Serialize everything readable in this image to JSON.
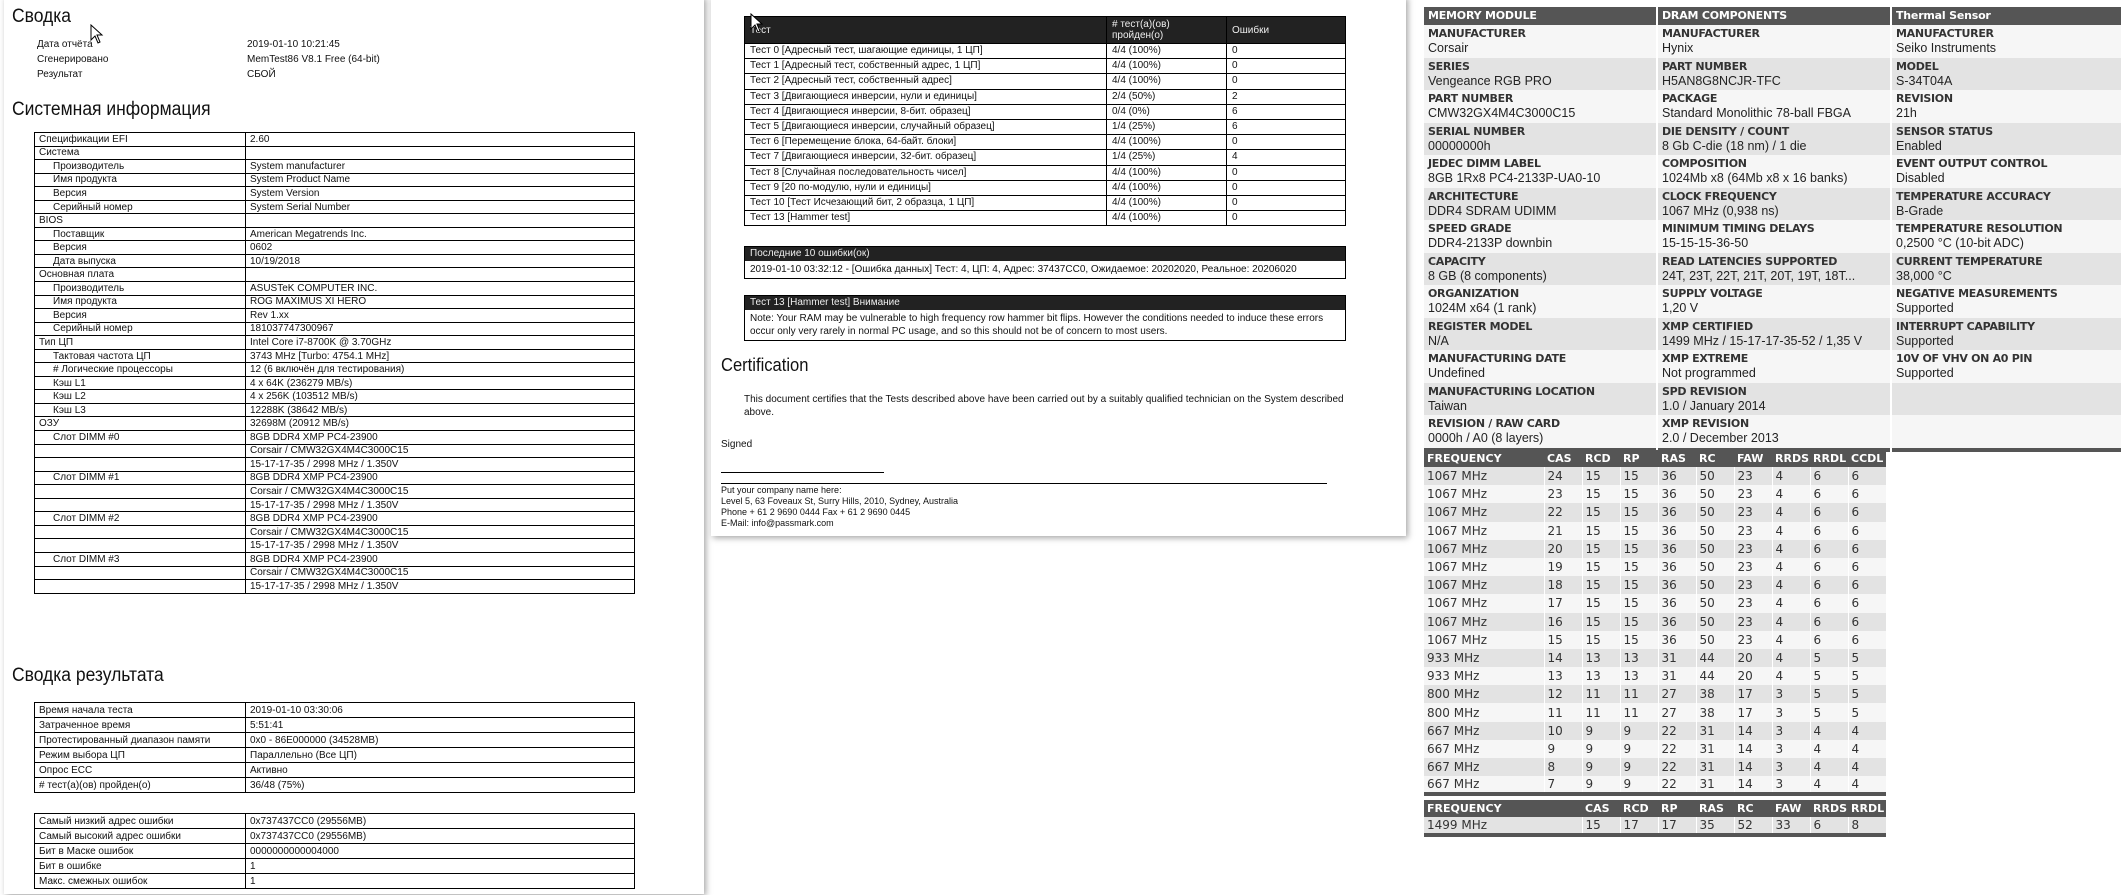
{
  "summary": {
    "title": "Сводка",
    "rows": [
      {
        "label": "Дата отчёта",
        "value": "2019-01-10 10:21:45"
      },
      {
        "label": "Сгенерировано",
        "value": "MemTest86 V8.1 Free (64-bit)"
      },
      {
        "label": "Результат",
        "value": "СБОЙ"
      }
    ]
  },
  "sysinfo": {
    "title": "Системная информация",
    "rows": [
      {
        "label": "Спецификации EFI",
        "value": "2.60",
        "indent": false
      },
      {
        "label": "Система",
        "value": "",
        "indent": false
      },
      {
        "label": "Производитель",
        "value": "System manufacturer",
        "indent": true
      },
      {
        "label": "Имя продукта",
        "value": "System Product Name",
        "indent": true
      },
      {
        "label": "Версия",
        "value": "System Version",
        "indent": true
      },
      {
        "label": "Серийный номер",
        "value": "System Serial Number",
        "indent": true
      },
      {
        "label": "BIOS",
        "value": "",
        "indent": false
      },
      {
        "label": "Поставщик",
        "value": "American Megatrends Inc.",
        "indent": true
      },
      {
        "label": "Версия",
        "value": "0602",
        "indent": true
      },
      {
        "label": "Дата выпуска",
        "value": "10/19/2018",
        "indent": true
      },
      {
        "label": "Основная плата",
        "value": "",
        "indent": false
      },
      {
        "label": "Производитель",
        "value": "ASUSTeK COMPUTER INC.",
        "indent": true
      },
      {
        "label": "Имя продукта",
        "value": "ROG MAXIMUS XI HERO",
        "indent": true
      },
      {
        "label": "Версия",
        "value": "Rev 1.xx",
        "indent": true
      },
      {
        "label": "Серийный номер",
        "value": "181037747300967",
        "indent": true
      },
      {
        "label": "Тип ЦП",
        "value": "Intel Core i7-8700K @ 3.70GHz",
        "indent": false
      },
      {
        "label": "Тактовая частота ЦП",
        "value": "3743 MHz [Turbo: 4754.1 MHz]",
        "indent": true
      },
      {
        "label": "# Логические процессоры",
        "value": "12 (6 включён для тестирования)",
        "indent": true
      },
      {
        "label": "Кэш L1",
        "value": "4 x 64K (236279 MB/s)",
        "indent": true
      },
      {
        "label": "Кэш L2",
        "value": "4 x 256K (103512 MB/s)",
        "indent": true
      },
      {
        "label": "Кэш L3",
        "value": "12288K (38642 MB/s)",
        "indent": true
      },
      {
        "label": "ОЗУ",
        "value": "32698M (20912 MB/s)",
        "indent": false
      },
      {
        "label": "Слот DIMM #0",
        "value": "8GB DDR4 XMP PC4-23900",
        "indent": true
      },
      {
        "label": "",
        "value": "Corsair / CMW32GX4M4C3000C15",
        "indent": true
      },
      {
        "label": "",
        "value": "15-17-17-35 / 2998 MHz / 1.350V",
        "indent": true
      },
      {
        "label": "Слот DIMM #1",
        "value": "8GB DDR4 XMP PC4-23900",
        "indent": true
      },
      {
        "label": "",
        "value": "Corsair / CMW32GX4M4C3000C15",
        "indent": true
      },
      {
        "label": "",
        "value": "15-17-17-35 / 2998 MHz / 1.350V",
        "indent": true
      },
      {
        "label": "Слот DIMM #2",
        "value": "8GB DDR4 XMP PC4-23900",
        "indent": true
      },
      {
        "label": "",
        "value": "Corsair / CMW32GX4M4C3000C15",
        "indent": true
      },
      {
        "label": "",
        "value": "15-17-17-35 / 2998 MHz / 1.350V",
        "indent": true
      },
      {
        "label": "Слот DIMM #3",
        "value": "8GB DDR4 XMP PC4-23900",
        "indent": true
      },
      {
        "label": "",
        "value": "Corsair / CMW32GX4M4C3000C15",
        "indent": true
      },
      {
        "label": "",
        "value": "15-17-17-35 / 2998 MHz / 1.350V",
        "indent": true
      }
    ]
  },
  "results": {
    "title": "Сводка результата",
    "table1": [
      {
        "label": "Время начала теста",
        "value": "2019-01-10 03:30:06"
      },
      {
        "label": "Затраченное время",
        "value": "5:51:41"
      },
      {
        "label": "Протестированный диапазон памяти",
        "value": "0x0 - 86E000000 (34528MB)"
      },
      {
        "label": "Режим выбора ЦП",
        "value": "Параллельно (Все ЦП)"
      },
      {
        "label": "Опрос ECC",
        "value": "Активно"
      },
      {
        "label": "# тест(а)(ов) пройден(о)",
        "value": "36/48 (75%)"
      }
    ],
    "table2": [
      {
        "label": "Самый низкий адрес ошибки",
        "value": "0x737437CC0 (29556MB)"
      },
      {
        "label": "Самый высокий адрес ошибки",
        "value": "0x737437CC0 (29556MB)"
      },
      {
        "label": "Бит в Маске ошибок",
        "value": "0000000000004000"
      },
      {
        "label": "Бит в ошибке",
        "value": "1"
      },
      {
        "label": "Макс. смежных ошибок",
        "value": "1"
      }
    ]
  },
  "tests": {
    "headers": [
      "Тест",
      "# тест(а)(ов) пройден(о)",
      "Ошибки"
    ],
    "rows": [
      [
        "Тест 0 [Адресный тест, шагающие единицы, 1 ЦП]",
        "4/4 (100%)",
        "0"
      ],
      [
        "Тест 1 [Адресный тест, собственный адрес, 1 ЦП]",
        "4/4 (100%)",
        "0"
      ],
      [
        "Тест 2 [Адресный тест, собственный адрес]",
        "4/4 (100%)",
        "0"
      ],
      [
        "Тест 3 [Двигающиеся инверсии, нули и единицы]",
        "2/4 (50%)",
        "2"
      ],
      [
        "Тест 4 [Двигающиеся инверсии, 8-бит. образец]",
        "0/4 (0%)",
        "6"
      ],
      [
        "Тест 5 [Двигающиеся инверсии, случайный образец]",
        "1/4 (25%)",
        "6"
      ],
      [
        "Тест 6 [Перемещение блока, 64-байт. блоки]",
        "4/4 (100%)",
        "0"
      ],
      [
        "Тест 7 [Двигающиеся инверсии, 32-бит. образец]",
        "1/4 (25%)",
        "4"
      ],
      [
        "Тест 8 [Случайная последовательность чисел]",
        "4/4 (100%)",
        "0"
      ],
      [
        "Тест 9 [20 по-модулю, нули и единицы]",
        "4/4 (100%)",
        "0"
      ],
      [
        "Тест 10 [Тест Исчезающий бит, 2 образца, 1 ЦП]",
        "4/4 (100%)",
        "0"
      ],
      [
        "Тест 13 [Hammer test]",
        "4/4 (100%)",
        "0"
      ]
    ]
  },
  "last_errors": {
    "title": "Последние 10 ошибки(ок)",
    "entries": [
      "2019-01-10 03:32:12 - [Ошибка данных] Тест: 4, ЦП: 4, Адрес: 37437CC0, Ожидаемое: 20202020, Реальное: 20206020"
    ]
  },
  "hammer": {
    "title": "Тест 13 [Hammer test] Внимание",
    "note": "Note: Your RAM may be vulnerable to high frequency row hammer bit flips. However the conditions needed to induce these errors occur only very rarely in normal PC usage, and so this should not be of concern to most users."
  },
  "certification": {
    "title": "Certification",
    "text": "This document certifies that the Tests described above have been carried out by a suitably qualified technician on the System described above.",
    "signed": "Signed",
    "footer": [
      "Put your company name here:",
      "Level 5, 63 Foveaux St, Surry Hills, 2010, Sydney, Australia",
      "Phone + 61 2 9690 0444 Fax + 61 2 9690 0445",
      "E-Mail: info@passmark.com"
    ]
  },
  "spd": {
    "columns": [
      {
        "title": "MEMORY MODULE",
        "items": [
          {
            "label": "MANUFACTURER",
            "value": "Corsair"
          },
          {
            "label": "SERIES",
            "value": "Vengeance RGB PRO"
          },
          {
            "label": "PART NUMBER",
            "value": "CMW32GX4M4C3000C15"
          },
          {
            "label": "SERIAL NUMBER",
            "value": "00000000h"
          },
          {
            "label": "JEDEC DIMM LABEL",
            "value": "8GB 1Rx8 PC4-2133P-UA0-10"
          },
          {
            "label": "ARCHITECTURE",
            "value": "DDR4 SDRAM UDIMM"
          },
          {
            "label": "SPEED GRADE",
            "value": "DDR4-2133P downbin"
          },
          {
            "label": "CAPACITY",
            "value": "8 GB (8 components)"
          },
          {
            "label": "ORGANIZATION",
            "value": "1024M x64 (1 rank)"
          },
          {
            "label": "REGISTER MODEL",
            "value": "N/A"
          },
          {
            "label": "MANUFACTURING DATE",
            "value": "Undefined"
          },
          {
            "label": "MANUFACTURING LOCATION",
            "value": "Taiwan"
          },
          {
            "label": "REVISION / RAW CARD",
            "value": "0000h / A0 (8 layers)"
          }
        ]
      },
      {
        "title": "DRAM COMPONENTS",
        "items": [
          {
            "label": "MANUFACTURER",
            "value": "Hynix"
          },
          {
            "label": "PART NUMBER",
            "value": "H5AN8G8NCJR-TFC"
          },
          {
            "label": "PACKAGE",
            "value": "Standard Monolithic 78-ball FBGA"
          },
          {
            "label": "DIE DENSITY / COUNT",
            "value": "8 Gb C-die (18 nm) / 1 die"
          },
          {
            "label": "COMPOSITION",
            "value": "1024Mb x8 (64Mb x8 x 16 banks)"
          },
          {
            "label": "CLOCK FREQUENCY",
            "value": "1067 MHz (0,938 ns)"
          },
          {
            "label": "MINIMUM TIMING DELAYS",
            "value": "15-15-15-36-50"
          },
          {
            "label": "READ LATENCIES SUPPORTED",
            "value": "24T, 23T, 22T, 21T, 20T, 19T, 18T..."
          },
          {
            "label": "SUPPLY VOLTAGE",
            "value": "1,20 V"
          },
          {
            "label": "XMP CERTIFIED",
            "value": "1499 MHz / 15-17-17-35-52 / 1,35 V"
          },
          {
            "label": "XMP EXTREME",
            "value": "Not programmed"
          },
          {
            "label": "SPD REVISION",
            "value": "1.0 / January 2014"
          },
          {
            "label": "XMP REVISION",
            "value": "2.0 / December 2013"
          }
        ]
      },
      {
        "title": "Thermal Sensor",
        "items": [
          {
            "label": "MANUFACTURER",
            "value": "Seiko Instruments"
          },
          {
            "label": "MODEL",
            "value": "S-34T04A"
          },
          {
            "label": "REVISION",
            "value": "21h"
          },
          {
            "label": "SENSOR STATUS",
            "value": "Enabled"
          },
          {
            "label": "EVENT OUTPUT CONTROL",
            "value": "Disabled"
          },
          {
            "label": "TEMPERATURE ACCURACY",
            "value": "B-Grade"
          },
          {
            "label": "TEMPERATURE RESOLUTION",
            "value": "0,2500 °C (10-bit ADC)"
          },
          {
            "label": "CURRENT TEMPERATURE",
            "value": "38,000 °C"
          },
          {
            "label": "NEGATIVE MEASUREMENTS",
            "value": "Supported"
          },
          {
            "label": "INTERRUPT CAPABILITY",
            "value": "Supported"
          },
          {
            "label": "10V OF VHV ON A0 PIN",
            "value": "Supported"
          },
          {
            "label": "",
            "value": ""
          },
          {
            "label": "",
            "value": ""
          }
        ]
      }
    ]
  },
  "timings": {
    "headers": [
      "FREQUENCY",
      "CAS",
      "RCD",
      "RP",
      "RAS",
      "RC",
      "FAW",
      "RRDS",
      "RRDL",
      "CCDL"
    ],
    "rows": [
      [
        "1067 MHz",
        "24",
        "15",
        "15",
        "36",
        "50",
        "23",
        "4",
        "6",
        "6"
      ],
      [
        "1067 MHz",
        "23",
        "15",
        "15",
        "36",
        "50",
        "23",
        "4",
        "6",
        "6"
      ],
      [
        "1067 MHz",
        "22",
        "15",
        "15",
        "36",
        "50",
        "23",
        "4",
        "6",
        "6"
      ],
      [
        "1067 MHz",
        "21",
        "15",
        "15",
        "36",
        "50",
        "23",
        "4",
        "6",
        "6"
      ],
      [
        "1067 MHz",
        "20",
        "15",
        "15",
        "36",
        "50",
        "23",
        "4",
        "6",
        "6"
      ],
      [
        "1067 MHz",
        "19",
        "15",
        "15",
        "36",
        "50",
        "23",
        "4",
        "6",
        "6"
      ],
      [
        "1067 MHz",
        "18",
        "15",
        "15",
        "36",
        "50",
        "23",
        "4",
        "6",
        "6"
      ],
      [
        "1067 MHz",
        "17",
        "15",
        "15",
        "36",
        "50",
        "23",
        "4",
        "6",
        "6"
      ],
      [
        "1067 MHz",
        "16",
        "15",
        "15",
        "36",
        "50",
        "23",
        "4",
        "6",
        "6"
      ],
      [
        "1067 MHz",
        "15",
        "15",
        "15",
        "36",
        "50",
        "23",
        "4",
        "6",
        "6"
      ],
      [
        "933 MHz",
        "14",
        "13",
        "13",
        "31",
        "44",
        "20",
        "4",
        "5",
        "5"
      ],
      [
        "933 MHz",
        "13",
        "13",
        "13",
        "31",
        "44",
        "20",
        "4",
        "5",
        "5"
      ],
      [
        "800 MHz",
        "12",
        "11",
        "11",
        "27",
        "38",
        "17",
        "3",
        "5",
        "5"
      ],
      [
        "800 MHz",
        "11",
        "11",
        "11",
        "27",
        "38",
        "17",
        "3",
        "5",
        "5"
      ],
      [
        "667 MHz",
        "10",
        "9",
        "9",
        "22",
        "31",
        "14",
        "3",
        "4",
        "4"
      ],
      [
        "667 MHz",
        "9",
        "9",
        "9",
        "22",
        "31",
        "14",
        "3",
        "4",
        "4"
      ],
      [
        "667 MHz",
        "8",
        "9",
        "9",
        "22",
        "31",
        "14",
        "3",
        "4",
        "4"
      ],
      [
        "667 MHz",
        "7",
        "9",
        "9",
        "22",
        "31",
        "14",
        "3",
        "4",
        "4"
      ]
    ]
  },
  "xmp_timings": {
    "headers": [
      "FREQUENCY",
      "CAS",
      "RCD",
      "RP",
      "RAS",
      "RC",
      "FAW",
      "RRDS",
      "RRDL"
    ],
    "rows": [
      [
        "1499 MHz",
        "15",
        "17",
        "17",
        "35",
        "52",
        "33",
        "6",
        "8"
      ]
    ]
  },
  "colors": {
    "spd_header": "#555555",
    "report_header": "#222222",
    "row_even": "#e3e3e3",
    "row_odd": "#f6f6f6"
  },
  "icons": {
    "cursor": "mouse-pointer-icon"
  }
}
